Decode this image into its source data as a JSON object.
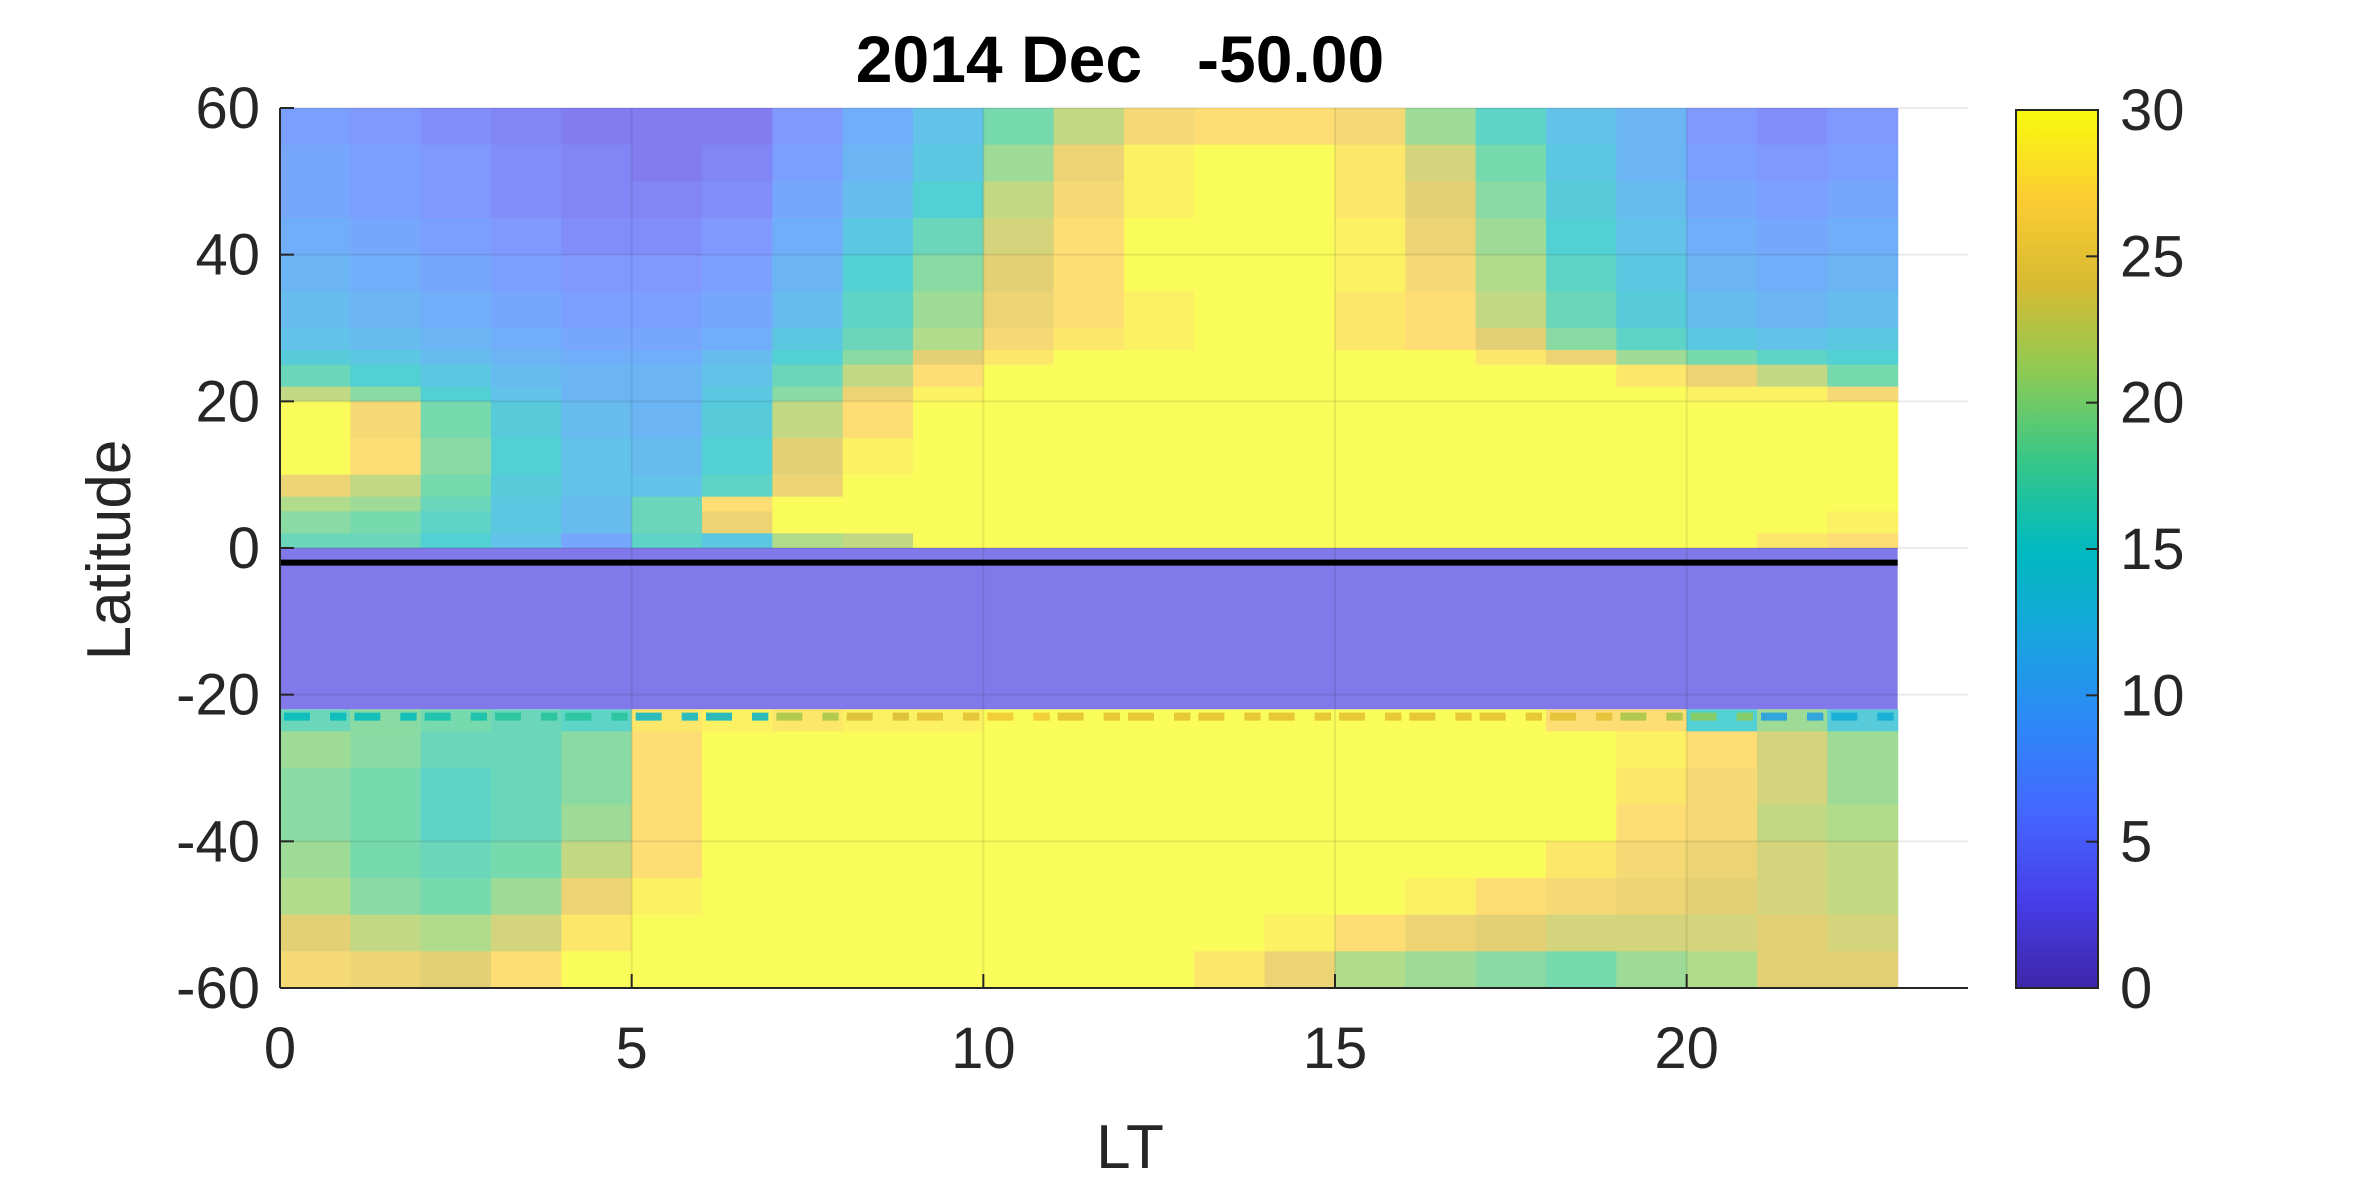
{
  "chart_data": {
    "type": "heatmap",
    "title": "2014 Dec   -50.00",
    "xlabel": "LT",
    "ylabel": "Latitude",
    "xlim": [
      0,
      24
    ],
    "ylim": [
      -60,
      60
    ],
    "xticks": [
      0,
      5,
      10,
      15,
      20
    ],
    "yticks": [
      60,
      40,
      20,
      0,
      -20,
      -40,
      -60
    ],
    "grid": true,
    "colorbar": {
      "clim": [
        0,
        30
      ],
      "ticks": [
        30,
        25,
        20,
        15,
        10,
        5,
        0
      ],
      "colormap": "parula",
      "position": "right"
    },
    "lt_bins": [
      0,
      1,
      2,
      3,
      4,
      5,
      6,
      7,
      8,
      9,
      10,
      11,
      12,
      13,
      14,
      15,
      16,
      17,
      18,
      19,
      20,
      21,
      22
    ],
    "lat_band_edges_top_to_bottom": [
      60,
      55,
      50,
      45,
      40,
      35,
      30,
      27,
      25,
      22,
      20,
      15,
      10,
      7,
      5,
      2,
      0
    ],
    "values_top_to_bottom": [
      [
        7,
        6,
        5,
        4,
        3,
        3,
        3,
        6,
        9,
        12,
        18,
        22,
        26,
        27,
        27,
        26,
        20,
        16,
        12,
        10,
        6,
        5,
        6
      ],
      [
        8,
        7,
        6,
        5,
        4,
        3,
        4,
        7,
        10,
        13,
        20,
        25,
        29,
        30,
        30,
        28,
        23,
        18,
        13,
        10,
        7,
        6,
        7
      ],
      [
        8,
        7,
        6,
        5,
        4,
        4,
        5,
        8,
        11,
        15,
        22,
        26,
        29,
        30,
        30,
        28,
        24,
        19,
        14,
        11,
        8,
        7,
        8
      ],
      [
        9,
        8,
        7,
        6,
        5,
        5,
        6,
        9,
        13,
        17,
        23,
        27,
        30,
        30,
        30,
        29,
        25,
        20,
        15,
        12,
        9,
        8,
        9
      ],
      [
        10,
        9,
        8,
        7,
        6,
        6,
        7,
        10,
        15,
        19,
        24,
        27,
        30,
        30,
        30,
        29,
        26,
        21,
        16,
        13,
        10,
        9,
        10
      ],
      [
        11,
        10,
        9,
        8,
        7,
        7,
        8,
        11,
        16,
        20,
        25,
        27,
        29,
        30,
        30,
        28,
        27,
        22,
        17,
        14,
        11,
        10,
        11
      ],
      [
        12,
        11,
        10,
        9,
        8,
        8,
        9,
        13,
        17,
        21,
        26,
        28,
        29,
        30,
        30,
        28,
        27,
        24,
        19,
        16,
        13,
        12,
        13
      ],
      [
        14,
        13,
        11,
        10,
        9,
        9,
        11,
        15,
        19,
        24,
        28,
        30,
        30,
        30,
        30,
        30,
        30,
        28,
        25,
        20,
        18,
        16,
        15
      ],
      [
        17,
        15,
        13,
        11,
        10,
        10,
        12,
        17,
        22,
        27,
        30,
        30,
        30,
        30,
        30,
        30,
        30,
        30,
        30,
        28,
        25,
        22,
        18
      ],
      [
        22,
        19,
        15,
        12,
        10,
        10,
        13,
        19,
        25,
        29,
        30,
        30,
        30,
        30,
        30,
        30,
        30,
        30,
        30,
        30,
        29,
        29,
        26
      ],
      [
        30,
        26,
        18,
        14,
        11,
        10,
        14,
        22,
        27,
        30,
        30,
        30,
        30,
        30,
        30,
        30,
        30,
        30,
        30,
        30,
        30,
        30,
        30
      ],
      [
        30,
        27,
        19,
        15,
        12,
        11,
        15,
        24,
        29,
        30,
        30,
        30,
        30,
        30,
        30,
        30,
        30,
        30,
        30,
        30,
        30,
        30,
        30
      ],
      [
        25,
        22,
        18,
        14,
        12,
        12,
        16,
        25,
        30,
        30,
        30,
        30,
        30,
        30,
        30,
        30,
        30,
        30,
        30,
        30,
        30,
        30,
        30
      ],
      [
        21,
        20,
        17,
        13,
        11,
        17,
        27,
        30,
        30,
        30,
        30,
        30,
        30,
        30,
        30,
        30,
        30,
        30,
        30,
        30,
        30,
        30,
        30
      ],
      [
        19,
        18,
        16,
        13,
        11,
        17,
        25,
        30,
        30,
        30,
        30,
        30,
        30,
        30,
        30,
        30,
        30,
        30,
        30,
        30,
        30,
        30,
        29
      ],
      [
        17,
        17,
        15,
        12,
        8,
        16,
        13,
        21,
        22,
        30,
        30,
        30,
        30,
        30,
        30,
        30,
        30,
        30,
        30,
        30,
        30,
        28,
        27
      ]
    ],
    "masked_band": {
      "lat": [
        -22,
        0
      ],
      "value": 2.5
    },
    "southern_lat_edges_top_to_bottom": [
      -22,
      -25,
      -30,
      -35,
      -40,
      -45,
      -50,
      -55,
      -60
    ],
    "southern_values_top_to_bottom": [
      [
        17,
        19,
        18,
        17,
        16,
        28,
        29,
        28,
        29,
        29,
        30,
        30,
        30,
        30,
        30,
        30,
        30,
        30,
        27,
        27,
        15,
        20,
        14
      ],
      [
        20,
        19,
        17,
        17,
        19,
        27,
        30,
        30,
        30,
        30,
        30,
        30,
        30,
        30,
        30,
        30,
        30,
        30,
        30,
        29,
        27,
        23,
        20
      ],
      [
        19,
        18,
        16,
        17,
        19,
        27,
        30,
        30,
        30,
        30,
        30,
        30,
        30,
        30,
        30,
        30,
        30,
        30,
        30,
        28,
        26,
        23,
        20
      ],
      [
        19,
        18,
        16,
        17,
        20,
        27,
        30,
        30,
        30,
        30,
        30,
        30,
        30,
        30,
        30,
        30,
        30,
        30,
        30,
        27,
        26,
        22,
        21
      ],
      [
        20,
        18,
        17,
        18,
        22,
        27,
        30,
        30,
        30,
        30,
        30,
        30,
        30,
        30,
        30,
        30,
        30,
        30,
        28,
        26,
        25,
        23,
        22
      ],
      [
        21,
        19,
        18,
        20,
        25,
        29,
        30,
        30,
        30,
        30,
        30,
        30,
        30,
        30,
        30,
        30,
        29,
        27,
        26,
        25,
        24,
        23,
        22
      ],
      [
        24,
        22,
        21,
        23,
        28,
        30,
        30,
        30,
        30,
        30,
        30,
        30,
        30,
        30,
        29,
        27,
        25,
        24,
        23,
        23,
        23,
        24,
        23
      ],
      [
        26,
        25,
        24,
        27,
        30,
        30,
        30,
        30,
        30,
        30,
        30,
        30,
        30,
        28,
        25,
        21,
        20,
        19,
        18,
        20,
        21,
        24,
        24
      ]
    ],
    "lines": [
      {
        "style": "solid",
        "color": "#000000",
        "lat": -2
      },
      {
        "style": "dashed",
        "lat": -23,
        "segment_values": [
          15,
          15,
          16,
          17,
          17,
          14,
          14,
          22,
          24,
          25,
          26,
          25,
          25,
          25,
          25,
          25,
          25,
          25,
          25,
          22,
          21,
          11,
          13
        ]
      }
    ]
  }
}
